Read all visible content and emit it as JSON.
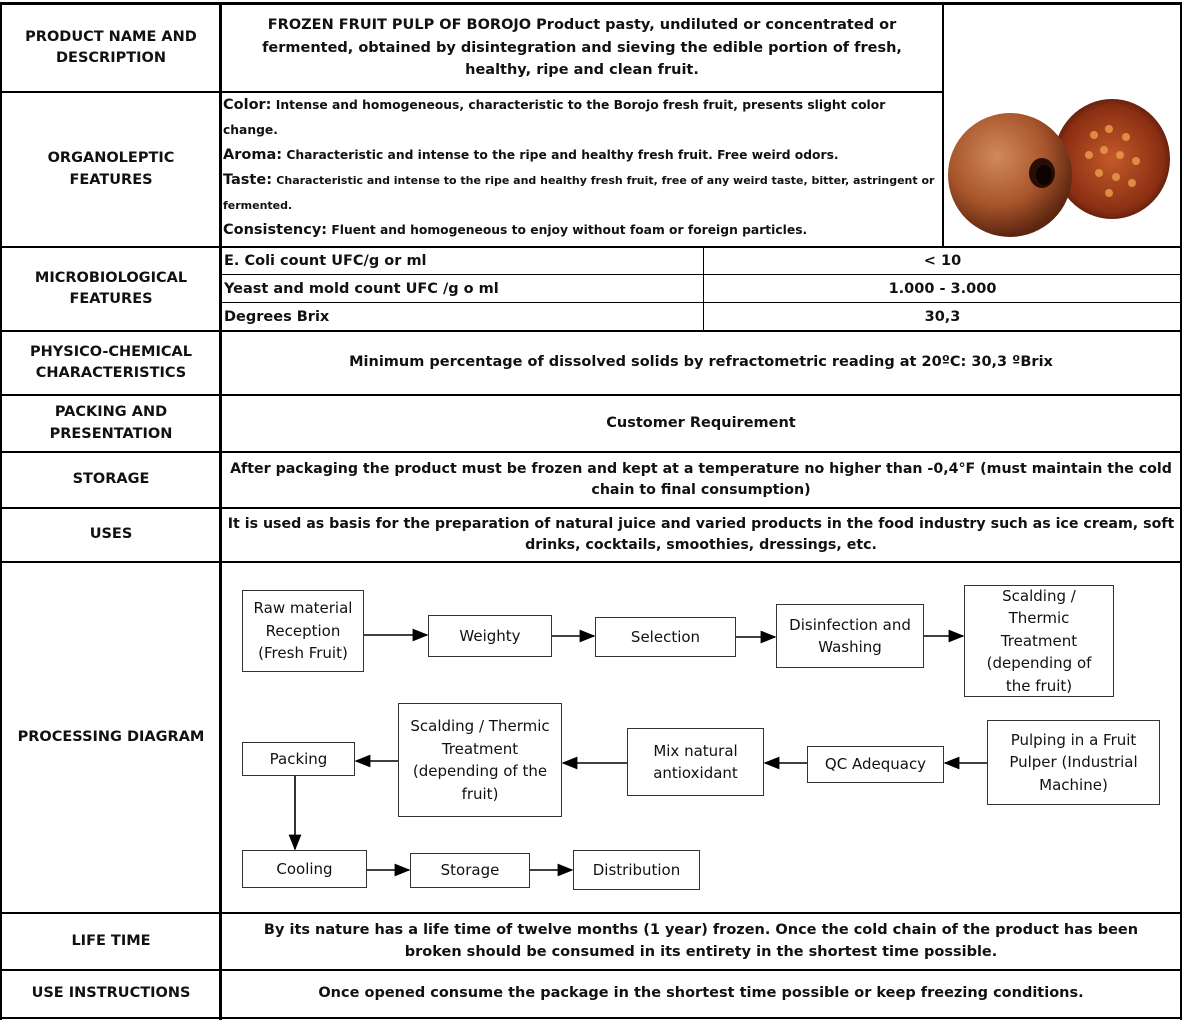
{
  "rows": [
    {
      "label": "PRODUCT NAME AND DESCRIPTION",
      "content": "FROZEN FRUIT PULP OF BOROJO Product pasty, undiluted or concentrated or fermented, obtained by disintegration and sieving the edible portion of fresh, healthy, ripe and clean fruit."
    },
    {
      "label": "ORGANOLEPTIC FEATURES",
      "items": [
        {
          "name": "Color:",
          "text": "Intense and homogeneous, characteristic to the Borojo fresh fruit, presents slight color change."
        },
        {
          "name": "Aroma:",
          "text": "Characteristic and intense to the ripe and healthy fresh fruit. Free weird odors."
        },
        {
          "name": "Taste:",
          "text": "Characteristic and intense to the ripe and healthy fresh fruit, free of any weird taste, bitter, astringent or fermented."
        },
        {
          "name": "Consistency:",
          "text": "Fluent and homogeneous to enjoy without foam or foreign particles."
        }
      ]
    },
    {
      "label": "MICROBIOLOGICAL FEATURES",
      "items": [
        {
          "name": "E. Coli count UFC/g or ml",
          "value": "< 10"
        },
        {
          "name": "Yeast and mold count UFC /g o ml",
          "value": "1.000 - 3.000"
        },
        {
          "name": "Degrees Brix",
          "value": "30,3"
        }
      ]
    },
    {
      "label": "PHYSICO-CHEMICAL CHARACTERISTICS",
      "content": "Minimum percentage of dissolved solids by refractometric reading at 20ºC: 30,3 ºBrix"
    },
    {
      "label": "PACKING AND PRESENTATION",
      "content": "Customer Requirement"
    },
    {
      "label": "STORAGE",
      "content": "After packaging the product must be frozen and kept at a temperature no higher than -0,4°F (must maintain the cold chain to final consumption)"
    },
    {
      "label": "USES",
      "content": "It is used as basis for the preparation of natural juice and varied products in the food industry such as ice cream, soft drinks, cocktails, smoothies, dressings, etc."
    },
    {
      "label": "PROCESSING DIAGRAM",
      "nodes": [
        {
          "label": "Raw material Reception (Fresh Fruit)"
        },
        {
          "label": "Weighty"
        },
        {
          "label": "Selection"
        },
        {
          "label": "Disinfection and Washing"
        },
        {
          "label": "Scalding / Thermic Treatment (depending of the fruit)"
        },
        {
          "label": "Pulping in a Fruit Pulper (Industrial Machine)"
        },
        {
          "label": "QC Adequacy"
        },
        {
          "label": "Mix natural antioxidant"
        },
        {
          "label": "Scalding / Thermic Treatment (depending of the fruit)"
        },
        {
          "label": "Packing"
        },
        {
          "label": "Cooling"
        },
        {
          "label": "Storage"
        },
        {
          "label": "Distribution"
        }
      ]
    },
    {
      "label": "LIFE TIME",
      "content": "By its nature has a life time of twelve months (1 year) frozen. Once the cold chain of the product has been broken should be consumed in its entirety in the shortest time possible."
    },
    {
      "label": "USE INSTRUCTIONS",
      "content": "Once opened consume the package in the shortest time possible or keep freezing conditions."
    }
  ]
}
